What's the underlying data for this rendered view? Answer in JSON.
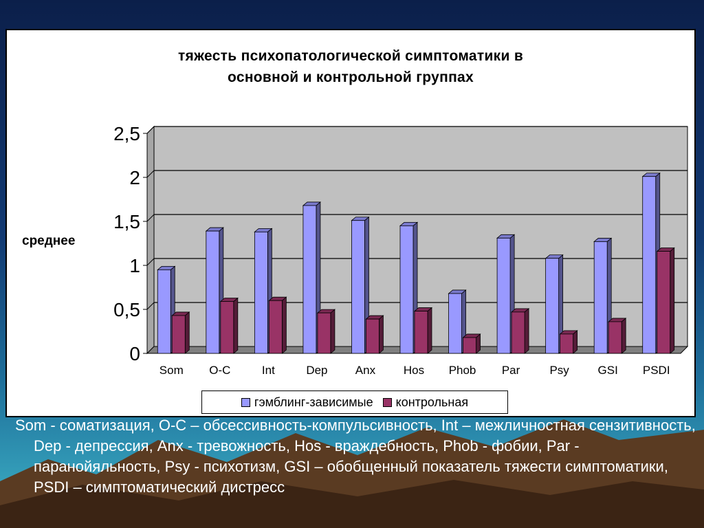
{
  "chart_data": {
    "type": "bar",
    "title": "тяжесть психопатологической симптоматики в\nосновной и контрольной группах",
    "ylabel": "среднее",
    "xlabel": "",
    "ylim": [
      0,
      2.5
    ],
    "yticks": [
      "0",
      "0,5",
      "1",
      "1,5",
      "2",
      "2,5"
    ],
    "grid": true,
    "legend_position": "bottom",
    "categories": [
      "Som",
      "O-C",
      "Int",
      "Dep",
      "Anx",
      "Hos",
      "Phob",
      "Par",
      "Psy",
      "GSI",
      "PSDI"
    ],
    "series": [
      {
        "name": "гэмблинг-зависимые",
        "color": "#9999ff",
        "values": [
          0.95,
          1.39,
          1.38,
          1.68,
          1.51,
          1.45,
          0.68,
          1.31,
          1.08,
          1.27,
          2.01
        ]
      },
      {
        "name": "контрольная",
        "color": "#993366",
        "values": [
          0.43,
          0.59,
          0.6,
          0.46,
          0.39,
          0.48,
          0.18,
          0.47,
          0.22,
          0.36,
          1.16
        ]
      }
    ]
  },
  "caption": {
    "text": "Som - соматизация, O-C – обсессивность-компульсивность, Int – межличностная сензитивность, Dep - депрессия, Anx - тревожность, Hos - враждебность, Phob - фобии, Par - паранойяльность, Psy - психотизм, GSI – обобщенный показатель тяжести симптоматики, PSDI – симптоматический дистресс"
  }
}
